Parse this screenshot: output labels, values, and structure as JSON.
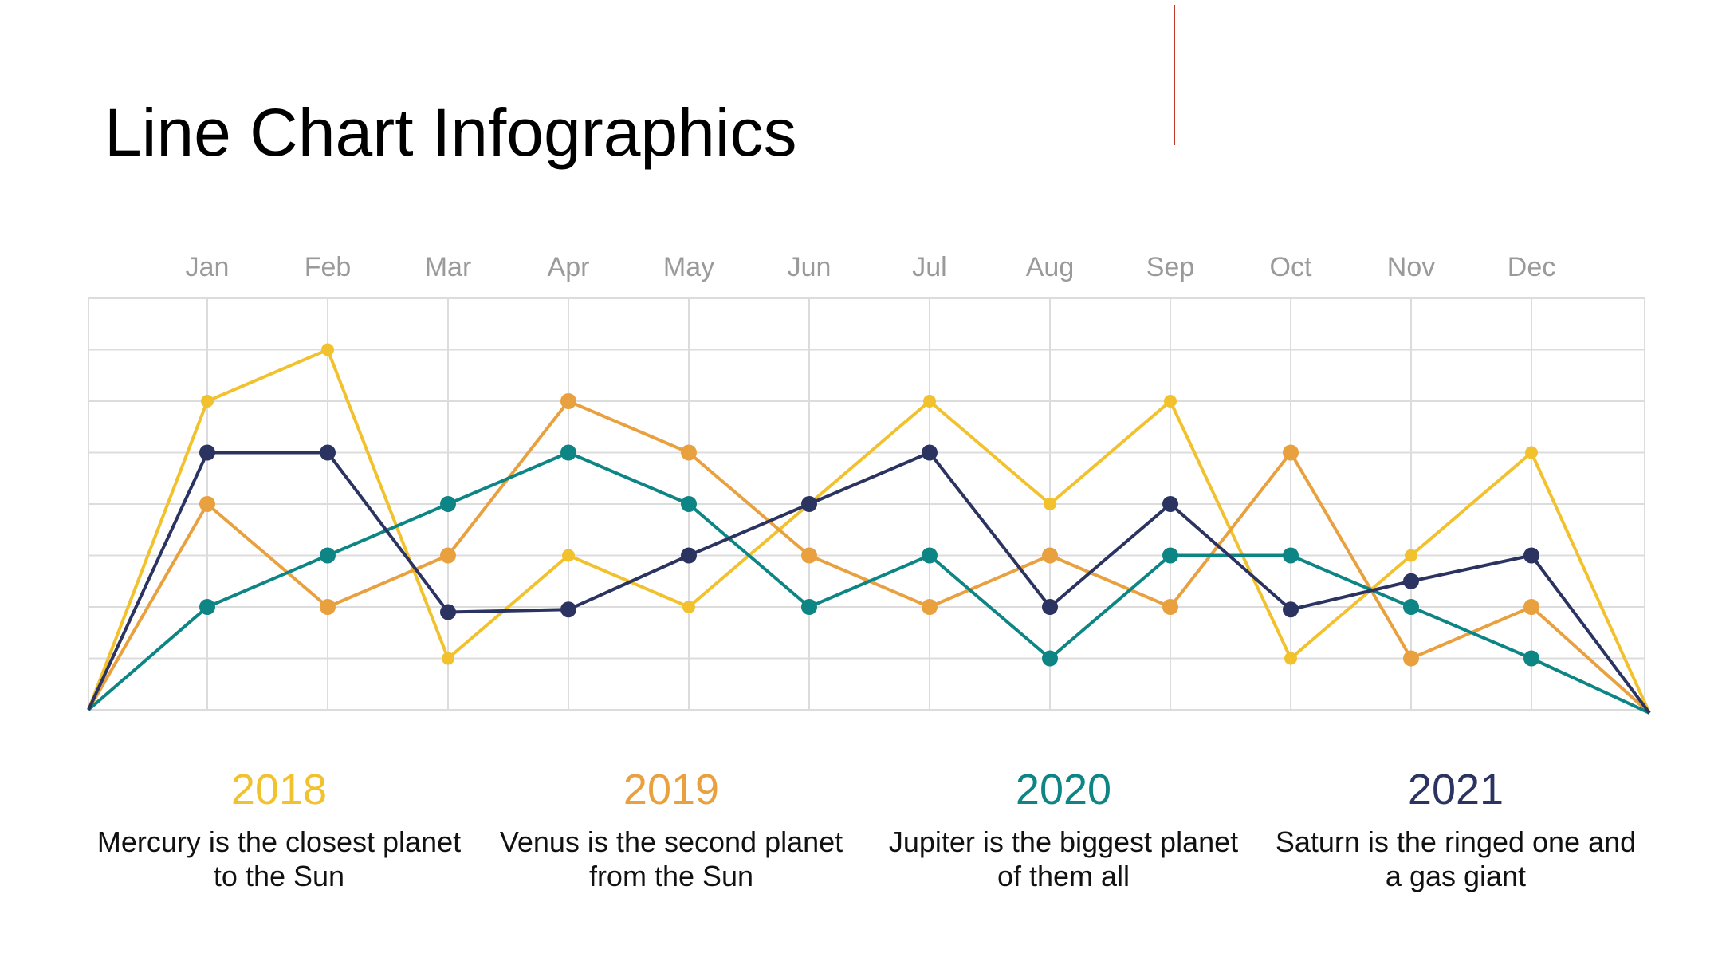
{
  "title": "Line Chart Infographics",
  "colors": {
    "background": "#ffffff",
    "grid": "#dcdcdc",
    "month_label": "#9a9a9a",
    "accent_line": "#c0392b",
    "2018": "#f2c12e",
    "2019": "#e9a03f",
    "2020": "#0e8585",
    "2021": "#2b3361"
  },
  "chart_data": {
    "type": "line",
    "title": "",
    "xlabel": "",
    "ylabel": "",
    "categories": [
      "Jan",
      "Feb",
      "Mar",
      "Apr",
      "May",
      "Jun",
      "Jul",
      "Aug",
      "Sep",
      "Oct",
      "Nov",
      "Dec"
    ],
    "ylim": [
      0,
      8
    ],
    "grid": true,
    "start_value": 0,
    "end_value": 0,
    "series": [
      {
        "name": "2018",
        "color": "#f2c12e",
        "values": [
          6,
          7,
          1,
          3,
          2,
          4,
          6,
          4,
          6,
          1,
          3,
          5
        ]
      },
      {
        "name": "2019",
        "color": "#e9a03f",
        "values": [
          4,
          2,
          3,
          6,
          5,
          3,
          2,
          3,
          2,
          5,
          1,
          2
        ]
      },
      {
        "name": "2020",
        "color": "#0e8585",
        "values": [
          2,
          3,
          4,
          5,
          4,
          2,
          3,
          1,
          3,
          3,
          2,
          1
        ]
      },
      {
        "name": "2021",
        "color": "#2b3361",
        "values": [
          5,
          5,
          1.9,
          1.95,
          3,
          4,
          5,
          2,
          4,
          1.95,
          2.5,
          3
        ]
      }
    ]
  },
  "legend": [
    {
      "year": "2018",
      "description": "Mercury is the closest planet to the Sun"
    },
    {
      "year": "2019",
      "description": "Venus is the second planet from the Sun"
    },
    {
      "year": "2020",
      "description": "Jupiter is the biggest planet of them all"
    },
    {
      "year": "2021",
      "description": "Saturn is the ringed one and a gas giant"
    }
  ]
}
